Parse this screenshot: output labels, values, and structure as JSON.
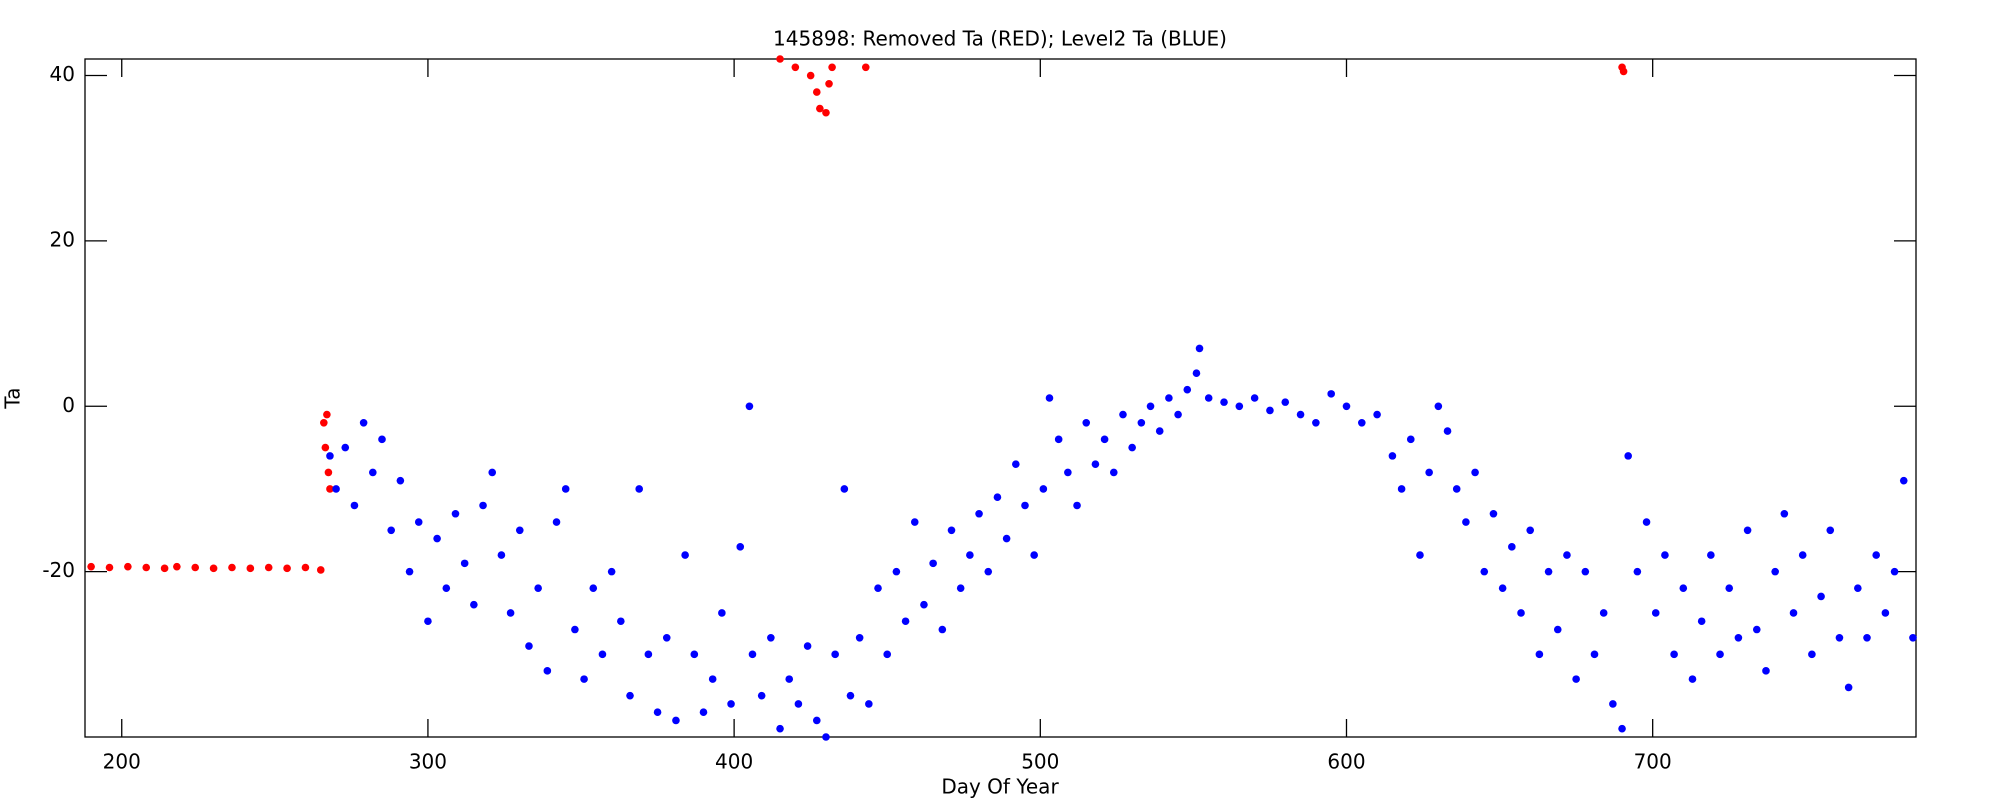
{
  "chart_data": {
    "type": "scatter",
    "title": "145898: Removed Ta (RED); Level2 Ta (BLUE)",
    "xlabel": "Day Of Year",
    "ylabel": "Ta",
    "xlim": [
      188,
      786
    ],
    "ylim": [
      -40,
      42
    ],
    "xticks": [
      200,
      300,
      400,
      500,
      600,
      700
    ],
    "yticks": [
      -20,
      0,
      20,
      40
    ],
    "series": [
      {
        "name": "Removed Ta",
        "color": "#ff0000",
        "x": [
          190,
          196,
          202,
          208,
          214,
          218,
          224,
          230,
          236,
          242,
          248,
          254,
          260,
          265,
          266,
          266.5,
          267,
          267.5,
          268,
          415,
          420,
          425,
          427,
          428,
          430,
          431,
          432,
          443,
          690,
          690.5
        ],
        "values": [
          -19.4,
          -19.5,
          -19.4,
          -19.5,
          -19.6,
          -19.4,
          -19.5,
          -19.6,
          -19.5,
          -19.6,
          -19.5,
          -19.6,
          -19.5,
          -19.8,
          -2,
          -5,
          -1,
          -8,
          -10,
          42,
          41,
          40,
          38,
          36,
          35.5,
          39,
          41,
          41,
          41,
          40.5
        ]
      },
      {
        "name": "Level2 Ta",
        "color": "#0000ff",
        "x": [
          268,
          270,
          273,
          276,
          279,
          282,
          285,
          288,
          291,
          294,
          297,
          300,
          303,
          306,
          309,
          312,
          315,
          318,
          321,
          324,
          327,
          330,
          333,
          336,
          339,
          342,
          345,
          348,
          351,
          354,
          357,
          360,
          363,
          366,
          369,
          372,
          375,
          378,
          381,
          384,
          387,
          390,
          393,
          396,
          399,
          402,
          405,
          406,
          409,
          412,
          415,
          418,
          421,
          424,
          427,
          430,
          433,
          436,
          438,
          441,
          444,
          447,
          450,
          453,
          456,
          459,
          462,
          465,
          468,
          471,
          474,
          477,
          480,
          483,
          486,
          489,
          492,
          495,
          498,
          501,
          503,
          506,
          509,
          512,
          515,
          518,
          521,
          524,
          527,
          530,
          533,
          536,
          539,
          542,
          545,
          548,
          551,
          552,
          555,
          560,
          565,
          570,
          575,
          580,
          585,
          590,
          595,
          600,
          605,
          610,
          615,
          618,
          621,
          624,
          627,
          630,
          633,
          636,
          639,
          642,
          645,
          648,
          651,
          654,
          657,
          660,
          663,
          666,
          669,
          672,
          675,
          678,
          681,
          684,
          687,
          690,
          692,
          695,
          698,
          701,
          704,
          707,
          710,
          713,
          716,
          719,
          722,
          725,
          728,
          731,
          734,
          737,
          740,
          743,
          746,
          749,
          752,
          755,
          758,
          761,
          764,
          767,
          770,
          773,
          776,
          779,
          782,
          785
        ],
        "values": [
          -6,
          -10,
          -5,
          -12,
          -2,
          -8,
          -4,
          -15,
          -9,
          -20,
          -14,
          -26,
          -16,
          -22,
          -13,
          -19,
          -24,
          -12,
          -8,
          -18,
          -25,
          -15,
          -29,
          -22,
          -32,
          -14,
          -10,
          -27,
          -33,
          -22,
          -30,
          -20,
          -26,
          -35,
          -10,
          -30,
          -37,
          -28,
          -38,
          -18,
          -30,
          -37,
          -33,
          -25,
          -36,
          -17,
          0,
          -30,
          -35,
          -28,
          -39,
          -33,
          -36,
          -29,
          -38,
          -40,
          -30,
          -10,
          -35,
          -28,
          -36,
          -22,
          -30,
          -20,
          -26,
          -14,
          -24,
          -19,
          -27,
          -15,
          -22,
          -18,
          -13,
          -20,
          -11,
          -16,
          -7,
          -12,
          -18,
          -10,
          1,
          -4,
          -8,
          -12,
          -2,
          -7,
          -4,
          -8,
          -1,
          -5,
          -2,
          0,
          -3,
          1,
          -1,
          2,
          4,
          7,
          1,
          0.5,
          0,
          1,
          -0.5,
          0.5,
          -1,
          -2,
          1.5,
          0,
          -2,
          -1,
          -6,
          -10,
          -4,
          -18,
          -8,
          0,
          -3,
          -10,
          -14,
          -8,
          -20,
          -13,
          -22,
          -17,
          -25,
          -15,
          -30,
          -20,
          -27,
          -18,
          -33,
          -20,
          -30,
          -25,
          -36,
          -39,
          -6,
          -20,
          -14,
          -25,
          -18,
          -30,
          -22,
          -33,
          -26,
          -18,
          -30,
          -22,
          -28,
          -15,
          -27,
          -32,
          -20,
          -13,
          -25,
          -18,
          -30,
          -23,
          -15,
          -28,
          -34,
          -22,
          -28,
          -18,
          -25,
          -20,
          -9,
          -28
        ]
      }
    ]
  }
}
